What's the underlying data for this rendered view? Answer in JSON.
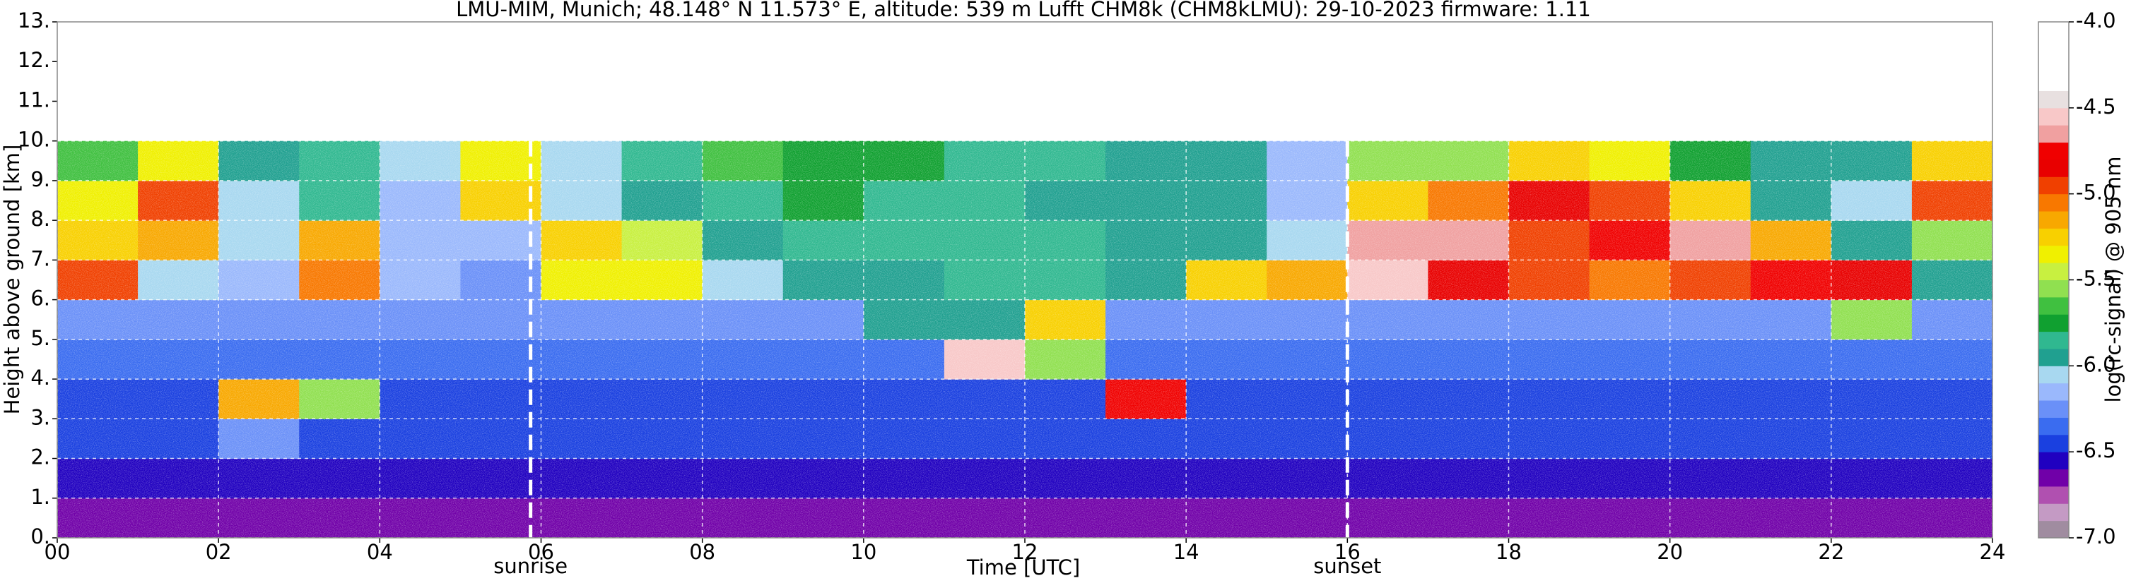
{
  "chart_data": {
    "type": "heatmap",
    "title": "LMU-MIM, Munich; 48.148° N 11.573° E, altitude: 539 m    Lufft CHM8k (CHM8kLMU): 29-10-2023    firmware: 1.11",
    "x_label": "Time [UTC]",
    "y_label": "Height above ground [km]",
    "xlim": [
      0,
      24
    ],
    "ylim": [
      0,
      13
    ],
    "xticks": [
      {
        "value": 0,
        "label": "00"
      },
      {
        "value": 2,
        "label": "02"
      },
      {
        "value": 4,
        "label": "04"
      },
      {
        "value": 6,
        "label": "06"
      },
      {
        "value": 8,
        "label": "08"
      },
      10,
      12,
      14,
      16,
      18,
      20,
      22,
      24
    ],
    "yticks": [
      {
        "value": 0,
        "label": "0."
      },
      {
        "value": 1,
        "label": "1."
      },
      {
        "value": 2,
        "label": "2."
      },
      {
        "value": 3,
        "label": "3."
      },
      {
        "value": 4,
        "label": "4."
      },
      {
        "value": 5,
        "label": "5."
      },
      {
        "value": 6,
        "label": "6."
      },
      {
        "value": 7,
        "label": "7."
      },
      {
        "value": 8,
        "label": "8."
      },
      {
        "value": 9,
        "label": "9."
      },
      {
        "value": 10,
        "label": "10."
      },
      {
        "value": 11,
        "label": "11."
      },
      {
        "value": 12,
        "label": "12."
      },
      {
        "value": 13,
        "label": "13."
      }
    ],
    "grid": true,
    "x": [
      0,
      1,
      2,
      3,
      4,
      5,
      6,
      7,
      8,
      9,
      10,
      11,
      12,
      13,
      14,
      15,
      16,
      17,
      18,
      19,
      20,
      21,
      22,
      23,
      24
    ],
    "y": [
      0,
      1,
      2,
      3,
      4,
      5,
      6,
      7,
      8,
      9,
      10
    ],
    "values": [
      [
        -6.7,
        -6.7,
        -6.7,
        -6.7,
        -6.7,
        -6.7,
        -6.7,
        -6.7,
        -6.7,
        -6.7,
        -6.7,
        -6.7,
        -6.7,
        -6.7,
        -6.7,
        -6.7,
        -6.7,
        -6.7,
        -6.7,
        -6.7,
        -6.7,
        -6.7,
        -6.7,
        -6.7
      ],
      [
        -6.6,
        -6.6,
        -6.6,
        -6.6,
        -6.6,
        -6.6,
        -6.6,
        -6.6,
        -6.6,
        -6.6,
        -6.6,
        -6.6,
        -6.6,
        -6.6,
        -6.6,
        -6.6,
        -6.6,
        -6.6,
        -6.6,
        -6.6,
        -6.6,
        -6.6,
        -6.6,
        -6.6
      ],
      [
        -6.5,
        -6.5,
        -6.3,
        -6.5,
        -6.5,
        -6.5,
        -6.5,
        -6.5,
        -6.5,
        -6.5,
        -6.5,
        -6.5,
        -6.5,
        -6.5,
        -6.5,
        -6.5,
        -6.5,
        -6.5,
        -6.5,
        -6.5,
        -6.5,
        -6.5,
        -6.5,
        -6.5
      ],
      [
        -6.5,
        -6.5,
        -5.2,
        -5.6,
        -6.5,
        -6.5,
        -6.5,
        -6.5,
        -6.5,
        -6.5,
        -6.5,
        -6.5,
        -6.5,
        -4.8,
        -6.5,
        -6.5,
        -6.5,
        -6.5,
        -6.5,
        -6.5,
        -6.5,
        -6.5,
        -6.5,
        -6.5
      ],
      [
        -6.4,
        -6.4,
        -6.4,
        -6.4,
        -6.4,
        -6.4,
        -6.4,
        -6.4,
        -6.4,
        -6.4,
        -6.4,
        -4.6,
        -5.6,
        -6.4,
        -6.4,
        -6.4,
        -6.4,
        -6.4,
        -6.4,
        -6.4,
        -6.4,
        -6.4,
        -6.4,
        -6.4
      ],
      [
        -6.3,
        -6.3,
        -6.3,
        -6.3,
        -6.3,
        -6.3,
        -6.3,
        -6.3,
        -6.3,
        -6.3,
        -6.0,
        -6.0,
        -5.3,
        -6.3,
        -6.3,
        -6.3,
        -6.3,
        -6.3,
        -6.3,
        -6.3,
        -6.3,
        -6.3,
        -5.6,
        -6.3
      ],
      [
        -5.0,
        -6.1,
        -6.2,
        -5.1,
        -6.2,
        -6.3,
        -5.4,
        -5.4,
        -6.1,
        -6.0,
        -6.0,
        -5.9,
        -5.9,
        -6.0,
        -5.3,
        -5.2,
        -4.6,
        -4.9,
        -5.0,
        -5.1,
        -5.0,
        -4.8,
        -4.9,
        -6.0
      ],
      [
        -5.3,
        -5.2,
        -6.1,
        -5.2,
        -6.2,
        -6.2,
        -5.3,
        -5.5,
        -6.0,
        -5.9,
        -5.9,
        -5.9,
        -5.9,
        -6.0,
        -6.0,
        -6.1,
        -4.7,
        -4.7,
        -5.0,
        -4.8,
        -4.7,
        -5.2,
        -6.0,
        -5.6
      ],
      [
        -5.4,
        -5.0,
        -6.1,
        -5.9,
        -6.2,
        -5.3,
        -6.1,
        -6.0,
        -5.9,
        -5.8,
        -5.9,
        -5.9,
        -6.0,
        -6.0,
        -6.0,
        -6.2,
        -5.3,
        -5.1,
        -4.9,
        -5.0,
        -5.3,
        -6.0,
        -6.1,
        -5.0
      ],
      [
        -5.7,
        -5.4,
        -6.0,
        -5.9,
        -6.1,
        -5.4,
        -6.1,
        -5.9,
        -5.7,
        -5.8,
        -5.8,
        -5.9,
        -5.9,
        -6.0,
        -6.0,
        -6.2,
        -5.6,
        -5.6,
        -5.3,
        -5.4,
        -5.8,
        -6.0,
        -6.0,
        -5.3
      ]
    ],
    "annotations": [
      {
        "x": 5.87,
        "text": "sunrise"
      },
      {
        "x": 16.0,
        "text": "sunset"
      }
    ],
    "colorbar": {
      "label": "log(rc-signal) @ 905 nm",
      "levels": [
        -7.0,
        -6.9,
        -6.8,
        -6.7,
        -6.6,
        -6.5,
        -6.4,
        -6.3,
        -6.2,
        -6.1,
        -6.0,
        -5.9,
        -5.8,
        -5.7,
        -5.6,
        -5.5,
        -5.4,
        -5.3,
        -5.2,
        -5.1,
        -5.0,
        -4.9,
        -4.8,
        -4.7,
        -4.6,
        -4.5,
        -4.4,
        -4.3,
        -4.2,
        -4.1,
        -4.0
      ],
      "colors": [
        "#a08ca0",
        "#c49ac4",
        "#b050b0",
        "#7000a8",
        "#2000c0",
        "#1a40e0",
        "#3a6cf0",
        "#6a90f8",
        "#9ab8fc",
        "#a8d8f0",
        "#20a090",
        "#30b890",
        "#10a030",
        "#40c040",
        "#90e050",
        "#c8f040",
        "#f0f000",
        "#f8d000",
        "#f8a800",
        "#f87800",
        "#f04000",
        "#e80000",
        "#f00000",
        "#f0a0a0",
        "#f8c8c8",
        "#e8e0e0",
        "#ffffff",
        "#ffffff",
        "#ffffff",
        "#ffffff"
      ],
      "ticks": [
        {
          "value": -7,
          "label": "-7.0"
        },
        -6.5,
        {
          "value": -6,
          "label": "-6.0"
        },
        -5.5,
        {
          "value": -5,
          "label": "-5.0"
        },
        -4.5,
        {
          "value": -4,
          "label": "-4.0"
        }
      ]
    }
  }
}
